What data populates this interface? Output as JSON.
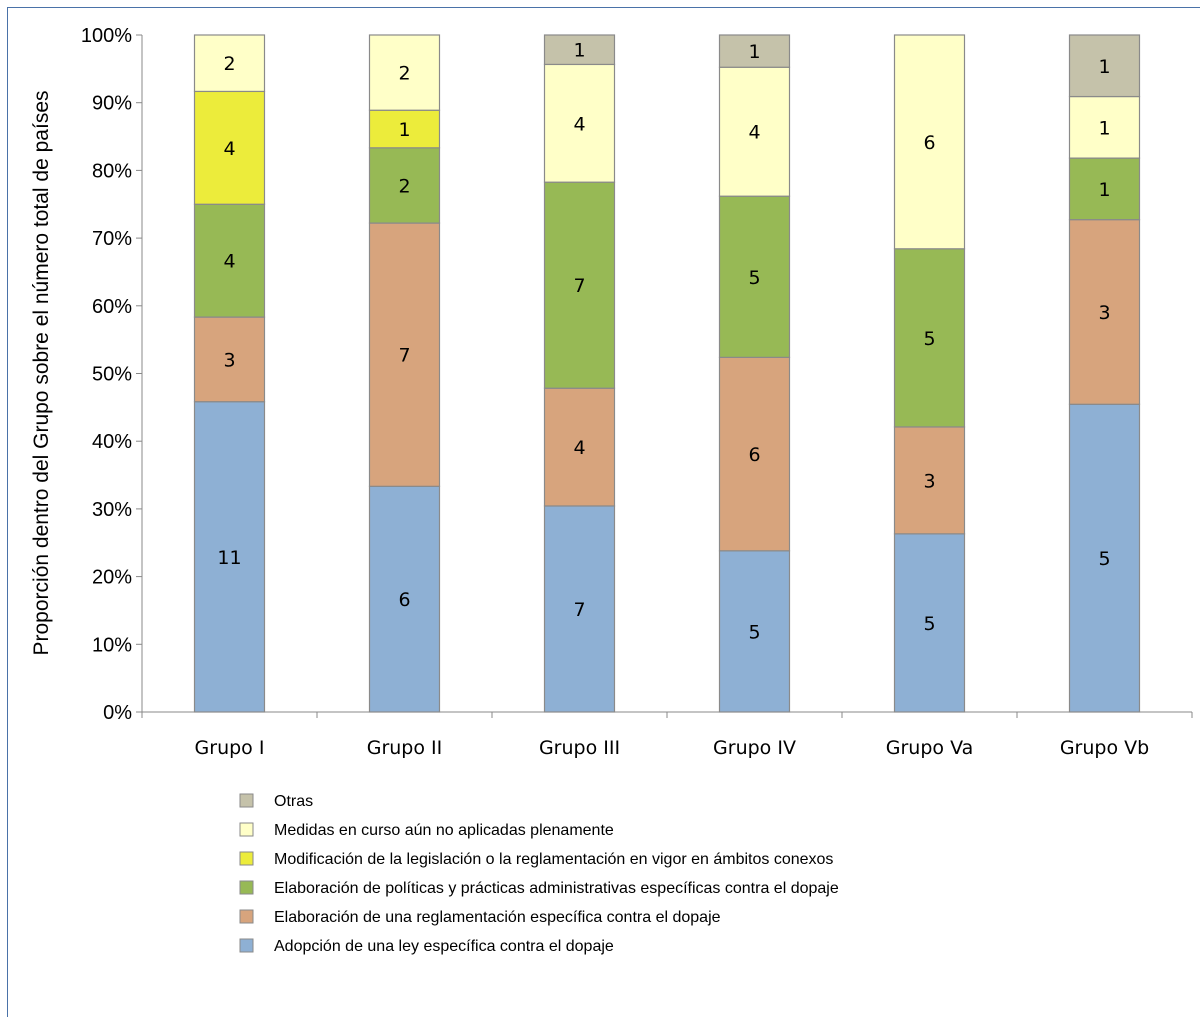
{
  "chart_data": {
    "type": "bar",
    "stacked": true,
    "normalized": true,
    "title": "",
    "xlabel": "",
    "ylabel": "Proporción dentro del Grupo sobre el número total de países",
    "ylim": [
      0,
      100
    ],
    "y_ticks": [
      "0%",
      "10%",
      "20%",
      "30%",
      "40%",
      "50%",
      "60%",
      "70%",
      "80%",
      "90%",
      "100%"
    ],
    "categories": [
      "Grupo I",
      "Grupo II",
      "Grupo III",
      "Grupo IV",
      "Grupo Va",
      "Grupo Vb"
    ],
    "legend_position": "bottom",
    "grid": false,
    "series": [
      {
        "name": "Adopción de una ley específica contra el dopaje",
        "color": "#8eb0d4",
        "values": [
          11,
          6,
          7,
          5,
          5,
          5
        ]
      },
      {
        "name": "Elaboración de una reglamentación específica contra el dopaje",
        "color": "#d7a47d",
        "values": [
          3,
          7,
          4,
          6,
          3,
          3
        ]
      },
      {
        "name": "Elaboración de políticas y prácticas administrativas específicas contra el dopaje",
        "color": "#97b955",
        "values": [
          4,
          2,
          7,
          5,
          5,
          1
        ]
      },
      {
        "name": "Modificación de la legislación o la reglamentación en vigor en ámbitos conexos",
        "color": "#ecec3b",
        "values": [
          4,
          1,
          0,
          0,
          0,
          0
        ]
      },
      {
        "name": "Medidas en curso aún no aplicadas plenamente",
        "color": "#ffffc8",
        "values": [
          2,
          2,
          4,
          4,
          6,
          1
        ]
      },
      {
        "name": "Otras",
        "color": "#c5c2aa",
        "values": [
          0,
          0,
          1,
          1,
          0,
          1
        ]
      }
    ]
  }
}
